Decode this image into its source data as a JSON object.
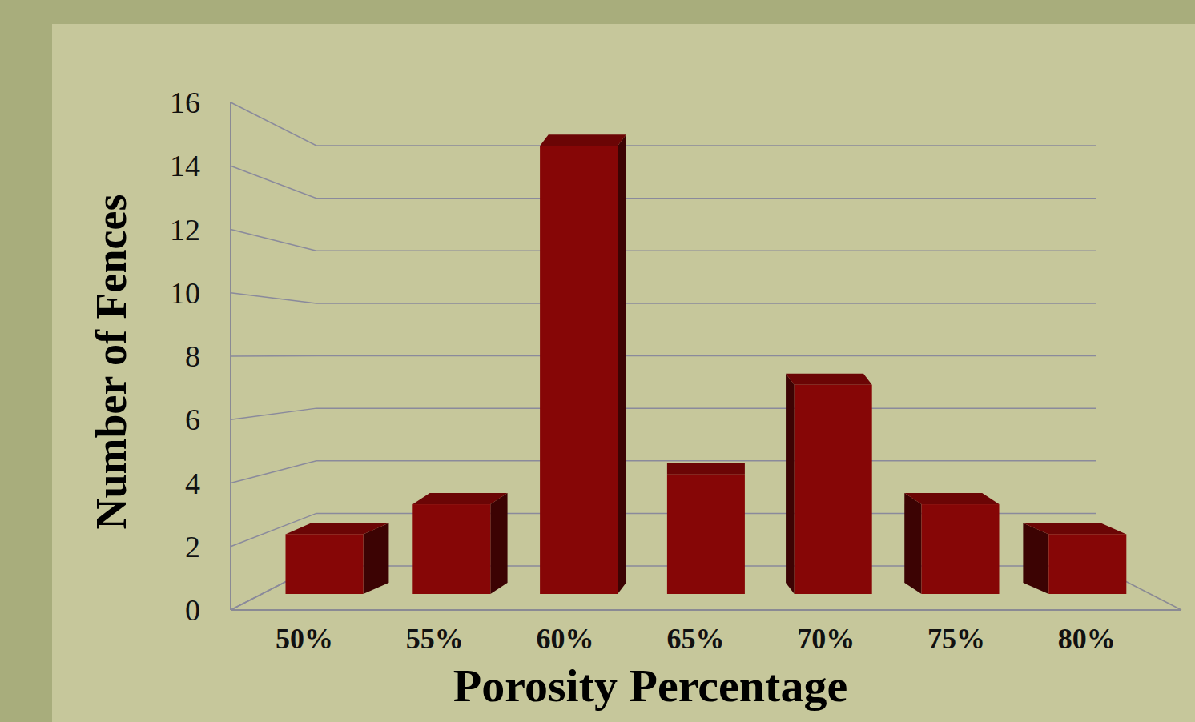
{
  "chart_data": {
    "type": "bar",
    "categories": [
      "50%",
      "55%",
      "60%",
      "65%",
      "70%",
      "75%",
      "80%"
    ],
    "values": [
      2,
      3,
      15,
      4,
      7,
      3,
      2
    ],
    "color": "#860606",
    "x_label": "Porosity Percentage",
    "y_label": "Number of Fences",
    "ylim": [
      0,
      16
    ],
    "yticks": [
      0,
      2,
      4,
      6,
      8,
      10,
      12,
      14,
      16
    ],
    "grid": true
  }
}
